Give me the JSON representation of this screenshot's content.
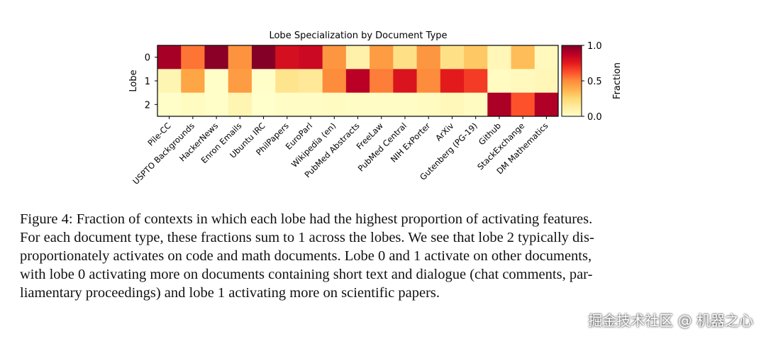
{
  "chart_data": {
    "type": "heatmap",
    "title": "Lobe Specialization by Document Type",
    "xlabel": "",
    "ylabel": "Lobe",
    "colorbar_label": "Fraction",
    "colorbar_ticks": [
      "0.0",
      "0.5",
      "1.0"
    ],
    "colormap": [
      "#ffffcc",
      "#ffeda0",
      "#fed976",
      "#feb24c",
      "#fd8d3c",
      "#fc4e2a",
      "#e31a1c",
      "#bd0026",
      "#800026"
    ],
    "vmin": 0,
    "vmax": 1,
    "rows": [
      "0",
      "1",
      "2"
    ],
    "columns": [
      "Pile-CC",
      "USPTO Backgrounds",
      "HackerNews",
      "Enron Emails",
      "Ubuntu IRC",
      "PhilPapers",
      "EuroParl",
      "Wikipedia (en)",
      "PubMed Abstracts",
      "FreeLaw",
      "PubMed Central",
      "NIH ExPorter",
      "ArXiv",
      "Gutenberg (PG-19)",
      "Github",
      "StackExchange",
      "DM Mathematics"
    ],
    "values": [
      [
        0.92,
        0.55,
        0.98,
        0.48,
        0.99,
        0.8,
        0.83,
        0.47,
        0.1,
        0.45,
        0.2,
        0.47,
        0.2,
        0.3,
        0.06,
        0.34,
        0.04
      ],
      [
        0.07,
        0.42,
        0.01,
        0.45,
        0.01,
        0.18,
        0.15,
        0.5,
        0.88,
        0.53,
        0.78,
        0.5,
        0.75,
        0.67,
        0.03,
        0.04,
        0.06
      ],
      [
        0.01,
        0.03,
        0.01,
        0.07,
        0.0,
        0.02,
        0.02,
        0.03,
        0.02,
        0.02,
        0.02,
        0.03,
        0.05,
        0.03,
        0.91,
        0.62,
        0.9
      ]
    ]
  },
  "caption": [
    "Figure 4: Fraction of contexts in which each lobe had the highest proportion of activating features.",
    "For each document type, these fractions sum to 1 across the lobes. We see that lobe 2 typically dis-",
    "proportionately activates on code and math documents. Lobe 0 and 1 activate on other documents,",
    "with lobe 0 activating more on documents containing short text and dialogue (chat comments, par-",
    "liamentary proceedings) and lobe 1 activating more on scientific papers."
  ],
  "watermark": "掘金技术社区 @ 机器之心"
}
